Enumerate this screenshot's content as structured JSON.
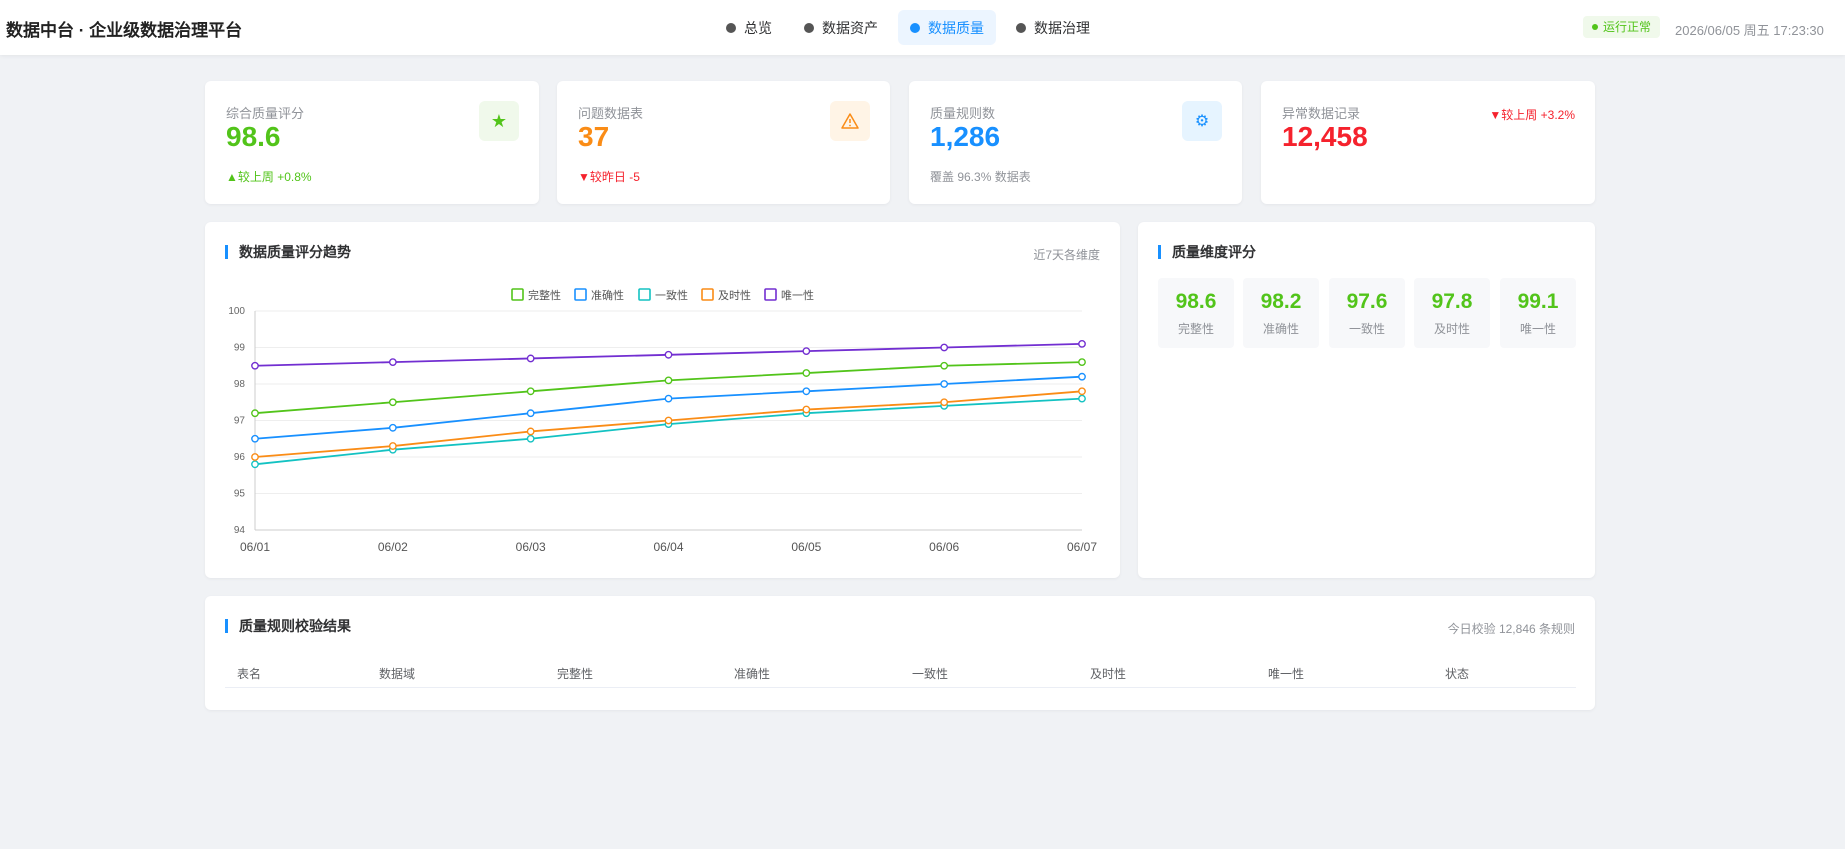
{
  "header": {
    "brand": "数据中台 · 企业级数据治理平台",
    "nav": [
      {
        "label": "总览",
        "active": false
      },
      {
        "label": "数据资产",
        "active": false
      },
      {
        "label": "数据质量",
        "active": true
      },
      {
        "label": "数据治理",
        "active": false
      }
    ],
    "status": "运行正常",
    "datetime": "2026/06/05 周五 17:23:30"
  },
  "stats": [
    {
      "title": "综合质量评分",
      "value": "98.6",
      "sub": "▲较上周 +0.8%",
      "icon": "star-icon",
      "color": "#52c41a"
    },
    {
      "title": "问题数据表",
      "value": "37",
      "sub": "▼较昨日 -5",
      "icon": "warning-icon",
      "color": "#fa8c16"
    },
    {
      "title": "质量规则数",
      "value": "1,286",
      "sub": "覆盖 96.3% 数据表",
      "icon": "gear-icon",
      "color": "#1890ff"
    },
    {
      "title": "异常数据记录",
      "value": "12,458",
      "sub": "▼较上周 +3.2%",
      "color": "#f5222d"
    }
  ],
  "trend": {
    "title": "数据质量评分趋势",
    "extra": "近7天各维度"
  },
  "chart_data": {
    "type": "line",
    "x": [
      "06/01",
      "06/02",
      "06/03",
      "06/04",
      "06/05",
      "06/06",
      "06/07"
    ],
    "ylim": [
      94,
      100
    ],
    "yticks": [
      94,
      95,
      96,
      97,
      98,
      99,
      100
    ],
    "legend": "top-center",
    "grid": true,
    "series": [
      {
        "name": "完整性",
        "color": "#52c41a",
        "values": [
          97.2,
          97.5,
          97.8,
          98.1,
          98.3,
          98.5,
          98.6
        ]
      },
      {
        "name": "准确性",
        "color": "#1890ff",
        "values": [
          96.5,
          96.8,
          97.2,
          97.6,
          97.8,
          98.0,
          98.2
        ]
      },
      {
        "name": "一致性",
        "color": "#13c2c2",
        "values": [
          95.8,
          96.2,
          96.5,
          96.9,
          97.2,
          97.4,
          97.6
        ]
      },
      {
        "name": "及时性",
        "color": "#fa8c16",
        "values": [
          96.0,
          96.3,
          96.7,
          97.0,
          97.3,
          97.5,
          97.8
        ]
      },
      {
        "name": "唯一性",
        "color": "#722ed1",
        "values": [
          98.5,
          98.6,
          98.7,
          98.8,
          98.9,
          99.0,
          99.1
        ]
      }
    ]
  },
  "dimensions": {
    "title": "质量维度评分",
    "items": [
      {
        "value": "98.6",
        "label": "完整性"
      },
      {
        "value": "98.2",
        "label": "准确性"
      },
      {
        "value": "97.6",
        "label": "一致性"
      },
      {
        "value": "97.8",
        "label": "及时性"
      },
      {
        "value": "99.1",
        "label": "唯一性"
      }
    ]
  },
  "rules": {
    "title": "质量规则校验结果",
    "extra": "今日校验 12,846 条规则",
    "columns": [
      "表名",
      "数据域",
      "完整性",
      "准确性",
      "一致性",
      "及时性",
      "唯一性",
      "状态"
    ]
  }
}
